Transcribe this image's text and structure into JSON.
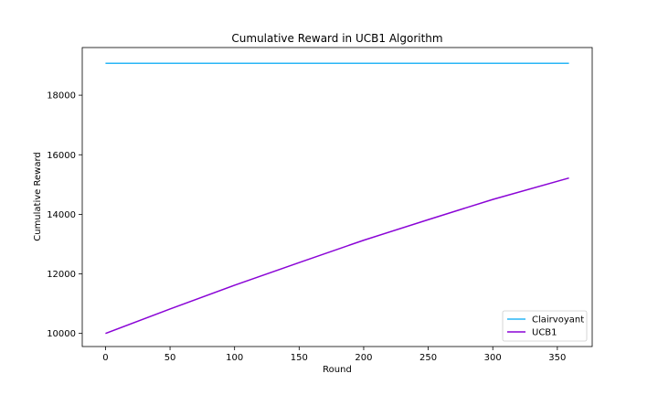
{
  "chart_data": {
    "type": "line",
    "title": "Cumulative Reward in UCB1 Algorithm",
    "xlabel": "Round",
    "ylabel": "Cumulative Reward",
    "xlim": [
      -18,
      377
    ],
    "ylim": [
      9560,
      19600
    ],
    "xticks": [
      0,
      50,
      100,
      150,
      200,
      250,
      300,
      350
    ],
    "yticks": [
      10000,
      12000,
      14000,
      16000,
      18000
    ],
    "grid": false,
    "legend": "lower-right",
    "series": [
      {
        "name": "Clairvoyant",
        "color": "#29b6f6",
        "x": [
          0,
          359
        ],
        "y": [
          19070,
          19070
        ]
      },
      {
        "name": "UCB1",
        "color": "#8a04d6",
        "x": [
          0,
          50,
          100,
          150,
          200,
          250,
          300,
          359
        ],
        "y": [
          10000,
          10820,
          11620,
          12380,
          13130,
          13820,
          14500,
          15220
        ]
      }
    ]
  }
}
